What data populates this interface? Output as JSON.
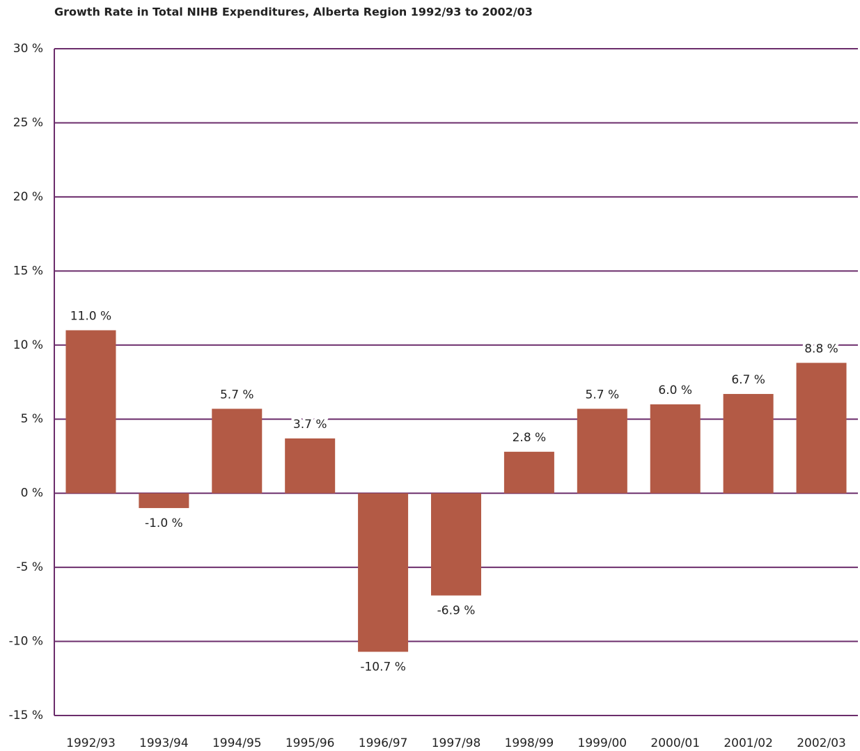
{
  "chart_data": {
    "type": "bar",
    "title": "Growth Rate in Total NIHB Expenditures, Alberta Region  1992/93 to 2002/03",
    "categories": [
      "1992/93",
      "1993/94",
      "1994/95",
      "1995/96",
      "1996/97",
      "1997/98",
      "1998/99",
      "1999/00",
      "2000/01",
      "2001/02",
      "2002/03"
    ],
    "values": [
      11.0,
      -1.0,
      5.7,
      3.7,
      -10.7,
      -6.9,
      2.8,
      5.7,
      6.0,
      6.7,
      8.8
    ],
    "value_labels": [
      "11.0 %",
      "-1.0 %",
      "5.7 %",
      "3.7 %",
      "-10.7 %",
      "-6.9 %",
      "2.8 %",
      "5.7 %",
      "6.0 %",
      "6.7 %",
      "8.8 %"
    ],
    "color": "#b35a45",
    "ylim": [
      -15,
      30
    ],
    "yticks": [
      {
        "value": -15,
        "label": "-15 %"
      },
      {
        "value": -10,
        "label": "-10 %"
      },
      {
        "value": -5,
        "label": "-5 %"
      },
      {
        "value": 0,
        "label": "0 %"
      },
      {
        "value": 5,
        "label": "5 %"
      },
      {
        "value": 10,
        "label": "10 %"
      },
      {
        "value": 15,
        "label": "15 %"
      },
      {
        "value": 20,
        "label": "20 %"
      },
      {
        "value": 25,
        "label": "25 %"
      },
      {
        "value": 30,
        "label": "30 %"
      }
    ],
    "grid": true,
    "grid_color": "#6b2c6b"
  }
}
